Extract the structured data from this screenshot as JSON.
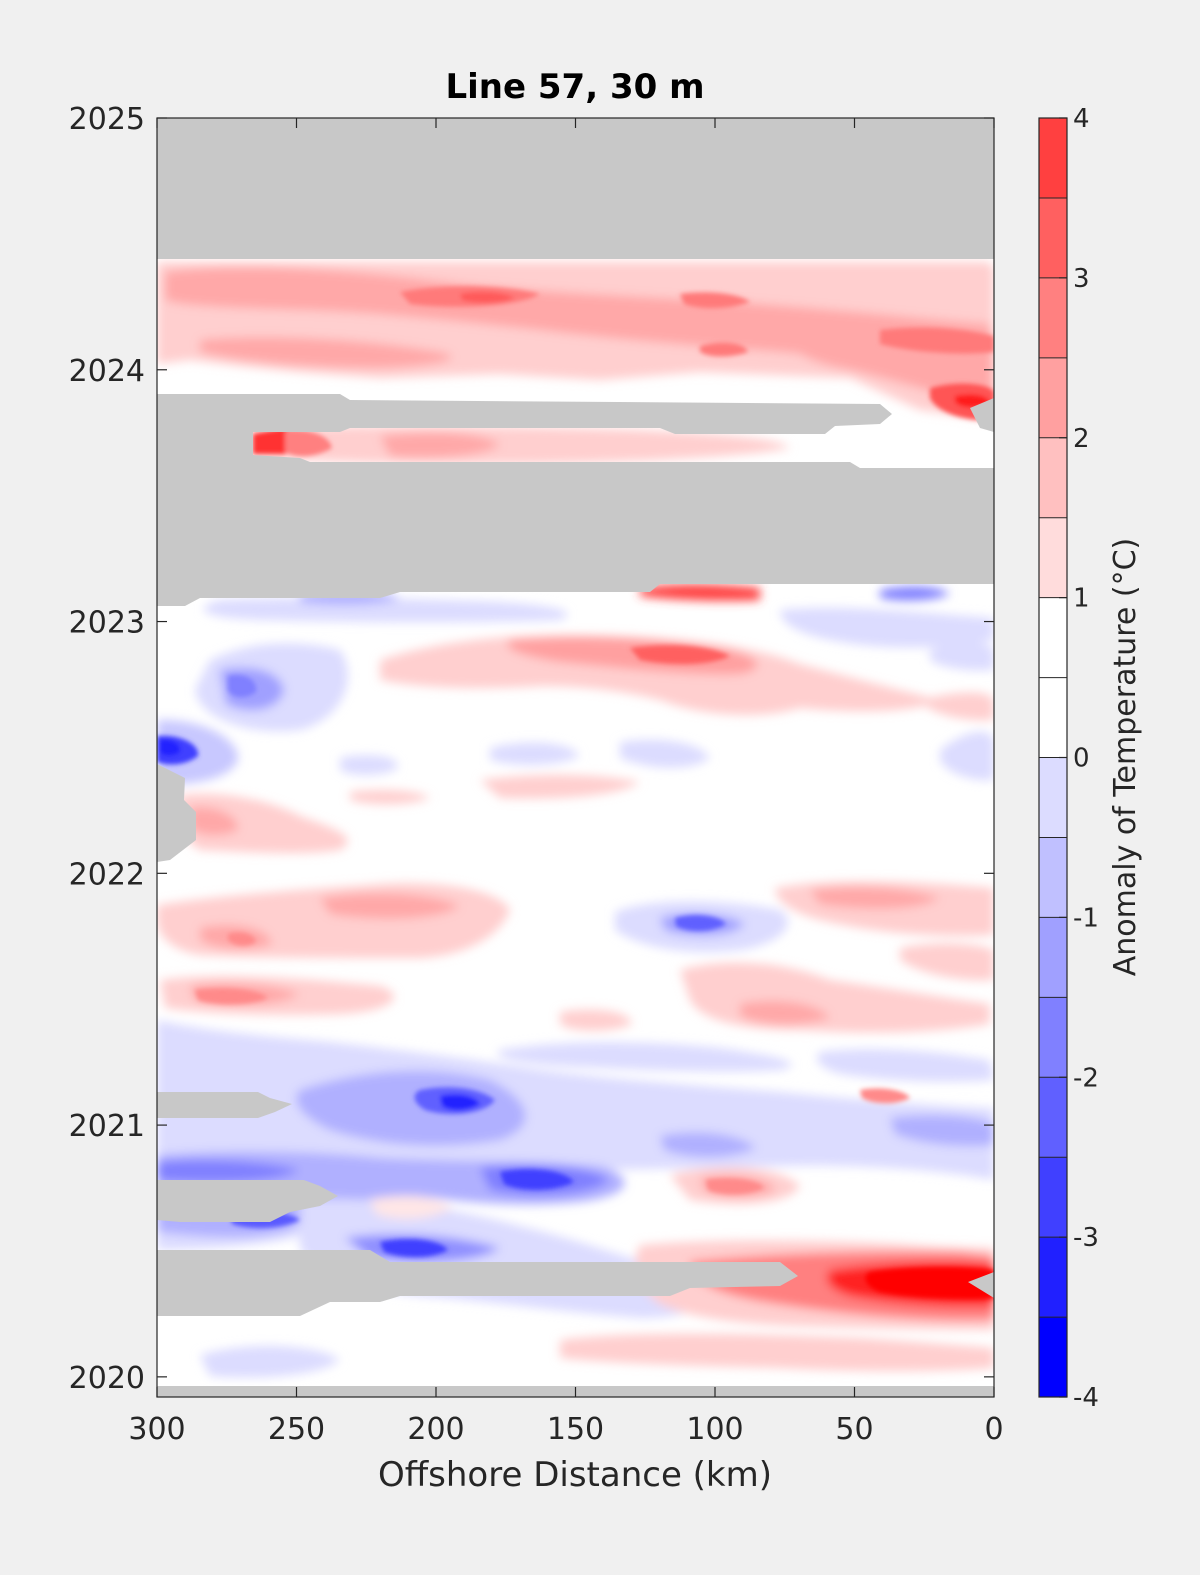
{
  "chart_data": {
    "type": "heatmap",
    "title": "Line 57, 30 m",
    "xlabel": "Offshore Distance (km)",
    "ylabel": "",
    "xlim": [
      300,
      0
    ],
    "ylim": [
      2019.92,
      2025.0
    ],
    "x_ticks": [
      300,
      250,
      200,
      150,
      100,
      50,
      0
    ],
    "x_tick_labels": [
      "300",
      "250",
      "200",
      "150",
      "100",
      "50",
      "0"
    ],
    "y_ticks": [
      2020,
      2021,
      2022,
      2023,
      2024,
      2025
    ],
    "y_tick_labels": [
      "2020",
      "2021",
      "2022",
      "2023",
      "2024",
      "2025"
    ],
    "colorbar": {
      "label": "Anomaly of Temperature (°C)",
      "min": -4,
      "max": 4,
      "step": 0.5,
      "ticks": [
        -4,
        -3,
        -2,
        -1,
        0,
        1,
        2,
        3,
        4
      ],
      "tick_labels": [
        "-4",
        "-3",
        "-2",
        "-1",
        "0",
        "1",
        "2",
        "3",
        "4"
      ],
      "colors": [
        "#0000ff",
        "#2020ff",
        "#4040ff",
        "#6060ff",
        "#8080ff",
        "#a0a0ff",
        "#c0c0ff",
        "#dcdcff",
        "#ffffff",
        "#ffffff",
        "#ffdcdc",
        "#ffc0c0",
        "#ffa0a0",
        "#ff8080",
        "#ff6060",
        "#ff4040"
      ]
    },
    "no_data_color": "#c8c8c8",
    "missing_data_regions": [
      {
        "x": [
          300,
          0
        ],
        "y": [
          2024.44,
          2025.0
        ]
      },
      {
        "x": [
          300,
          0
        ],
        "y": [
          2023.13,
          2023.61
        ]
      },
      {
        "x": [
          300,
          35
        ],
        "y": [
          2023.78,
          2023.88
        ]
      },
      {
        "x": [
          300,
          265
        ],
        "y": [
          2023.64,
          2023.78
        ]
      },
      {
        "x": [
          300,
          290
        ],
        "y": [
          2022.03,
          2022.42
        ]
      },
      {
        "x": [
          300,
          240
        ],
        "y": [
          2020.99,
          2021.09
        ]
      },
      {
        "x": [
          300,
          235
        ],
        "y": [
          2020.6,
          2020.75
        ]
      },
      {
        "x": [
          300,
          70
        ],
        "y": [
          2020.22,
          2020.49
        ]
      },
      {
        "x": [
          300,
          0
        ],
        "y": [
          2019.92,
          2019.96
        ]
      }
    ],
    "anomaly_features": [
      {
        "x": 150,
        "y": 2024.2,
        "value": 1.0
      },
      {
        "x": 180,
        "y": 2024.3,
        "value": 2.0
      },
      {
        "x": 170,
        "y": 2024.29,
        "value": 3.0
      },
      {
        "x": 100,
        "y": 2024.27,
        "value": 2.0
      },
      {
        "x": 10,
        "y": 2023.87,
        "value": 3.5
      },
      {
        "x": 255,
        "y": 2023.7,
        "value": 3.0
      },
      {
        "x": 100,
        "y": 2022.88,
        "value": 2.5
      },
      {
        "x": 280,
        "y": 2022.73,
        "value": -2.0
      },
      {
        "x": 295,
        "y": 2022.47,
        "value": -3.5
      },
      {
        "x": 280,
        "y": 2022.18,
        "value": 1.5
      },
      {
        "x": 100,
        "y": 2021.8,
        "value": -2.0
      },
      {
        "x": 270,
        "y": 2021.48,
        "value": 1.5
      },
      {
        "x": 190,
        "y": 2021.06,
        "value": -3.0
      },
      {
        "x": 150,
        "y": 2020.76,
        "value": -2.0
      },
      {
        "x": 90,
        "y": 2020.75,
        "value": 1.5
      },
      {
        "x": 205,
        "y": 2020.47,
        "value": -2.5
      },
      {
        "x": 25,
        "y": 2020.35,
        "value": 4.0
      }
    ]
  }
}
